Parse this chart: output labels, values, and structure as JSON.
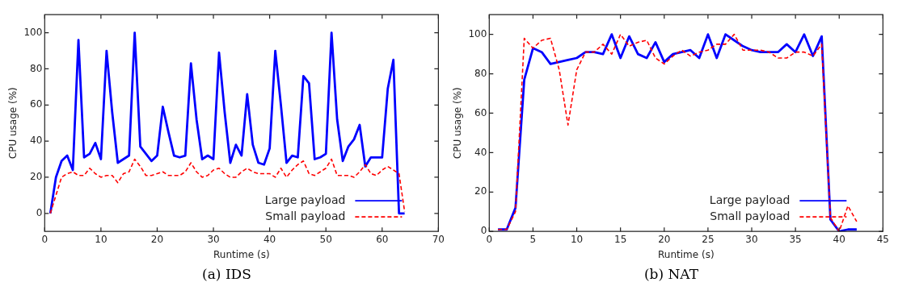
{
  "chart_data": [
    {
      "type": "line",
      "xlabel": "Runtime (s)",
      "ylabel": "CPU usage (%)",
      "xlim": [
        0,
        70
      ],
      "xticks": [
        0,
        10,
        20,
        30,
        40,
        50,
        60,
        70
      ],
      "ylim": [
        -10,
        110
      ],
      "yticks": [
        0,
        20,
        40,
        60,
        80,
        100
      ],
      "grid": false,
      "legend": "bottom right",
      "marker": "none",
      "annotations": [
        "(a) IDS"
      ],
      "x": [
        1,
        2,
        3,
        4,
        5,
        6,
        7,
        8,
        9,
        10,
        11,
        12,
        13,
        14,
        15,
        16,
        17,
        18,
        19,
        20,
        21,
        22,
        23,
        24,
        25,
        26,
        27,
        28,
        29,
        30,
        31,
        32,
        33,
        34,
        35,
        36,
        37,
        38,
        39,
        40,
        41,
        42,
        43,
        44,
        45,
        46,
        47,
        48,
        49,
        50,
        51,
        52,
        53,
        54,
        55,
        56,
        57,
        58,
        59,
        60,
        61,
        62,
        63,
        64
      ],
      "series": [
        {
          "name": "Large payload",
          "color": "#0000ff",
          "line_style": "solid",
          "values": [
            0,
            20,
            29,
            32,
            24,
            96,
            31,
            33,
            39,
            30,
            90,
            56,
            28,
            30,
            32,
            100,
            37,
            33,
            29,
            32,
            59,
            45,
            32,
            31,
            32,
            83,
            52,
            30,
            32,
            30,
            89,
            56,
            28,
            38,
            32,
            66,
            38,
            28,
            27,
            36,
            90,
            60,
            28,
            32,
            31,
            76,
            72,
            30,
            31,
            33,
            100,
            52,
            29,
            37,
            41,
            49,
            26,
            31,
            31,
            31,
            69,
            85,
            0,
            0
          ]
        },
        {
          "name": "Small payload",
          "color": "#ff0000",
          "line_style": "dashed",
          "values": [
            0,
            10,
            20,
            22,
            23,
            21,
            21,
            25,
            22,
            20,
            21,
            21,
            17,
            22,
            23,
            30,
            26,
            21,
            21,
            22,
            23,
            21,
            21,
            21,
            23,
            28,
            23,
            20,
            21,
            24,
            25,
            22,
            20,
            20,
            23,
            25,
            23,
            22,
            22,
            22,
            20,
            25,
            20,
            24,
            27,
            29,
            22,
            21,
            23,
            25,
            30,
            21,
            21,
            21,
            20,
            23,
            27,
            22,
            21,
            24,
            26,
            24,
            22,
            1
          ]
        }
      ]
    },
    {
      "type": "line",
      "xlabel": "Runtime (s)",
      "ylabel": "CPU usage (%)",
      "xlim": [
        0,
        45
      ],
      "xticks": [
        0,
        5,
        10,
        15,
        20,
        25,
        30,
        35,
        40,
        45
      ],
      "ylim": [
        0,
        110
      ],
      "yticks": [
        0,
        20,
        40,
        60,
        80,
        100
      ],
      "grid": false,
      "legend": "bottom right",
      "marker": "none",
      "annotations": [
        "(b) NAT"
      ],
      "x": [
        1,
        2,
        3,
        4,
        5,
        6,
        7,
        8,
        9,
        10,
        11,
        12,
        13,
        14,
        15,
        16,
        17,
        18,
        19,
        20,
        21,
        22,
        23,
        24,
        25,
        26,
        27,
        28,
        29,
        30,
        31,
        32,
        33,
        34,
        35,
        36,
        37,
        38,
        39,
        40,
        41,
        42
      ],
      "series": [
        {
          "name": "Large payload",
          "color": "#0000ff",
          "line_style": "solid",
          "values": [
            1,
            1,
            12,
            77,
            93,
            91,
            85,
            86,
            87,
            88,
            91,
            91,
            90,
            100,
            88,
            99,
            90,
            88,
            96,
            86,
            90,
            91,
            92,
            88,
            100,
            88,
            100,
            97,
            94,
            92,
            91,
            91,
            91,
            95,
            91,
            100,
            89,
            99,
            6,
            0,
            1,
            1
          ]
        },
        {
          "name": "Small payload",
          "color": "#ff0000",
          "line_style": "dashed",
          "values": [
            1,
            1,
            10,
            98,
            93,
            97,
            98,
            82,
            54,
            82,
            91,
            91,
            95,
            90,
            100,
            94,
            96,
            97,
            88,
            85,
            89,
            92,
            89,
            91,
            92,
            95,
            95,
            100,
            92,
            92,
            92,
            91,
            88,
            88,
            91,
            91,
            89,
            95,
            7,
            0,
            13,
            5
          ]
        }
      ]
    }
  ]
}
